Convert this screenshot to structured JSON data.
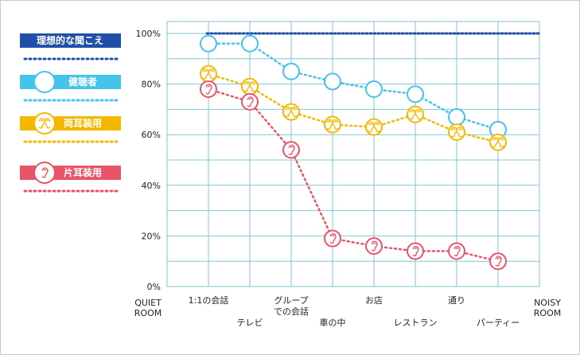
{
  "chart_data": {
    "type": "line",
    "categories": [
      "1:1の会話",
      "テレビ",
      "グループ\nでの会話",
      "車の中",
      "お店",
      "レストラン",
      "通り",
      "パーティー"
    ],
    "x_end_labels": {
      "left": "QUIET\nROOM",
      "right": "NOISY\nROOM"
    },
    "ylim": [
      0,
      100
    ],
    "yticks": [
      "0%",
      "20%",
      "40%",
      "60%",
      "80%",
      "100%"
    ],
    "grid": true,
    "legend_placement": "left",
    "series": [
      {
        "name": "理想的な聞こえ",
        "key": "ideal",
        "color": "#1f4fa8",
        "style": "ideal",
        "values": [
          100,
          100,
          100,
          100,
          100,
          100,
          100,
          100
        ]
      },
      {
        "name": "健聴者",
        "key": "normal",
        "color": "#45c4ea",
        "style": "circle",
        "values": [
          96,
          96,
          85,
          81,
          78,
          76,
          67,
          62
        ]
      },
      {
        "name": "両耳装用",
        "key": "both",
        "color": "#f5b800",
        "style": "ear-yellow",
        "values": [
          84,
          79,
          69,
          64,
          63,
          68,
          61,
          57
        ]
      },
      {
        "name": "片耳装用",
        "key": "one",
        "color": "#e8546a",
        "style": "ear-red",
        "values": [
          78,
          73,
          54,
          19,
          16,
          14,
          14,
          10
        ]
      }
    ]
  }
}
